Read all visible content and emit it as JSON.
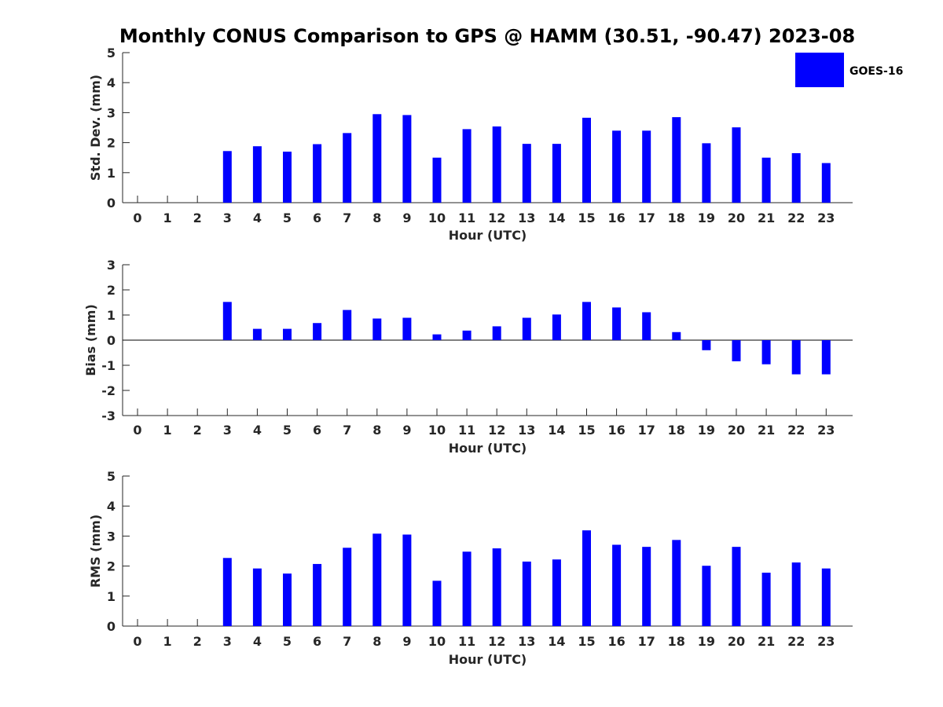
{
  "title": "Monthly CONUS Comparison to GPS @ HAMM (30.51, -90.47) 2023-08",
  "legend": {
    "label": "GOES-16",
    "color": "#0000ff",
    "placement": "top-right"
  },
  "bar_color": "#0000ff",
  "chart_data": [
    {
      "type": "bar",
      "xlabel": "Hour (UTC)",
      "ylabel": "Std. Dev. (mm)",
      "ylim": [
        0,
        5
      ],
      "yticks": [
        0,
        1,
        2,
        3,
        4,
        5
      ],
      "categories": [
        "0",
        "1",
        "2",
        "3",
        "4",
        "5",
        "6",
        "7",
        "8",
        "9",
        "10",
        "11",
        "12",
        "13",
        "14",
        "15",
        "16",
        "17",
        "18",
        "19",
        "20",
        "21",
        "22",
        "23"
      ],
      "series": [
        {
          "name": "GOES-16",
          "values": [
            null,
            null,
            null,
            1.72,
            1.88,
            1.7,
            1.95,
            2.32,
            2.95,
            2.92,
            1.5,
            2.45,
            2.54,
            1.96,
            1.96,
            2.83,
            2.4,
            2.4,
            2.85,
            1.98,
            2.51,
            1.5,
            1.65,
            1.32
          ]
        }
      ],
      "grid": false
    },
    {
      "type": "bar",
      "xlabel": "Hour (UTC)",
      "ylabel": "Bias (mm)",
      "ylim": [
        -3,
        3
      ],
      "yticks": [
        -3,
        -2,
        -1,
        0,
        1,
        2,
        3
      ],
      "categories": [
        "0",
        "1",
        "2",
        "3",
        "4",
        "5",
        "6",
        "7",
        "8",
        "9",
        "10",
        "11",
        "12",
        "13",
        "14",
        "15",
        "16",
        "17",
        "18",
        "19",
        "20",
        "21",
        "22",
        "23"
      ],
      "series": [
        {
          "name": "GOES-16",
          "values": [
            null,
            null,
            null,
            1.52,
            0.45,
            0.45,
            0.68,
            1.2,
            0.86,
            0.89,
            0.23,
            0.38,
            0.55,
            0.89,
            1.02,
            1.52,
            1.3,
            1.11,
            0.32,
            -0.4,
            -0.84,
            -0.96,
            -1.36,
            -1.36
          ]
        }
      ],
      "grid": false
    },
    {
      "type": "bar",
      "xlabel": "Hour (UTC)",
      "ylabel": "RMS (mm)",
      "ylim": [
        0,
        5
      ],
      "yticks": [
        0,
        1,
        2,
        3,
        4,
        5
      ],
      "categories": [
        "0",
        "1",
        "2",
        "3",
        "4",
        "5",
        "6",
        "7",
        "8",
        "9",
        "10",
        "11",
        "12",
        "13",
        "14",
        "15",
        "16",
        "17",
        "18",
        "19",
        "20",
        "21",
        "22",
        "23"
      ],
      "series": [
        {
          "name": "GOES-16",
          "values": [
            null,
            null,
            null,
            2.27,
            1.92,
            1.75,
            2.07,
            2.61,
            3.08,
            3.05,
            1.51,
            2.48,
            2.59,
            2.15,
            2.22,
            3.19,
            2.71,
            2.64,
            2.87,
            2.01,
            2.64,
            1.78,
            2.12,
            1.92
          ]
        }
      ],
      "grid": false
    }
  ]
}
